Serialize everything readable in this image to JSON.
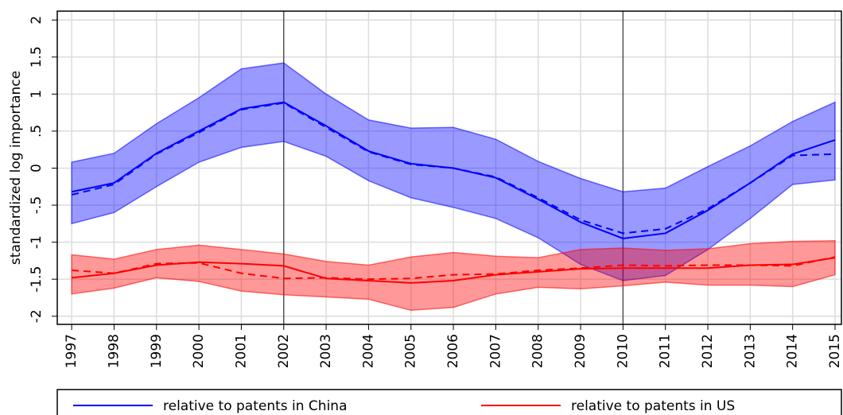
{
  "chart_data": {
    "type": "line",
    "y_label": "standardized log importance",
    "x": [
      1997,
      1998,
      1999,
      2000,
      2001,
      2002,
      2003,
      2004,
      2005,
      2006,
      2007,
      2008,
      2009,
      2010,
      2011,
      2012,
      2013,
      2014,
      2015
    ],
    "xlim": [
      1996.66,
      2015.15
    ],
    "xticks": [
      1997,
      1998,
      1999,
      2000,
      2001,
      2002,
      2003,
      2004,
      2005,
      2006,
      2007,
      2008,
      2009,
      2010,
      2011,
      2012,
      2013,
      2014,
      2015
    ],
    "ylim": [
      -2.11,
      2.12
    ],
    "yticks": [
      2,
      1.5,
      1,
      {
        "value": 0.5,
        "label": ".5"
      },
      0,
      {
        "value": -0.5,
        "label": "-.5"
      },
      -1,
      -1.5,
      -2
    ],
    "xlines": [
      2002,
      2010
    ],
    "grid": true,
    "series": [
      {
        "name": "relative to patents in China",
        "color": "#0000ff",
        "values": [
          -0.32,
          -0.2,
          0.2,
          0.5,
          0.8,
          0.89,
          0.57,
          0.23,
          0.06,
          0.0,
          -0.13,
          -0.42,
          -0.73,
          -0.95,
          -0.88,
          -0.57,
          -0.2,
          0.19,
          0.38
        ],
        "dashed_values": [
          -0.36,
          -0.22,
          0.19,
          0.48,
          0.79,
          0.88,
          0.55,
          0.22,
          0.05,
          0.0,
          -0.12,
          -0.4,
          -0.7,
          -0.88,
          -0.82,
          -0.55,
          -0.2,
          0.17,
          0.19
        ],
        "upper": [
          0.08,
          0.2,
          0.6,
          0.95,
          1.34,
          1.42,
          1.0,
          0.65,
          0.54,
          0.55,
          0.39,
          0.09,
          -0.14,
          -0.32,
          -0.27,
          0.02,
          0.3,
          0.63,
          0.89
        ],
        "lower": [
          -0.75,
          -0.6,
          -0.25,
          0.08,
          0.28,
          0.36,
          0.16,
          -0.17,
          -0.4,
          -0.53,
          -0.68,
          -0.94,
          -1.3,
          -1.52,
          -1.45,
          -1.1,
          -0.68,
          -0.22,
          -0.16
        ]
      },
      {
        "name": "relative to patents in US",
        "color": "#ff0000",
        "values": [
          -1.48,
          -1.42,
          -1.31,
          -1.27,
          -1.29,
          -1.32,
          -1.49,
          -1.52,
          -1.55,
          -1.52,
          -1.44,
          -1.4,
          -1.36,
          -1.35,
          -1.35,
          -1.35,
          -1.31,
          -1.3,
          -1.21
        ],
        "dashed_values": [
          -1.38,
          -1.42,
          -1.29,
          -1.28,
          -1.42,
          -1.49,
          -1.48,
          -1.5,
          -1.49,
          -1.44,
          -1.43,
          -1.38,
          -1.35,
          -1.31,
          -1.32,
          -1.31,
          -1.31,
          -1.32,
          -1.2
        ],
        "upper": [
          -1.17,
          -1.23,
          -1.1,
          -1.04,
          -1.1,
          -1.16,
          -1.26,
          -1.31,
          -1.2,
          -1.14,
          -1.19,
          -1.21,
          -1.1,
          -1.08,
          -1.11,
          -1.09,
          -1.02,
          -0.99,
          -0.98
        ],
        "lower": [
          -1.7,
          -1.62,
          -1.48,
          -1.53,
          -1.66,
          -1.71,
          -1.74,
          -1.77,
          -1.92,
          -1.88,
          -1.7,
          -1.61,
          -1.63,
          -1.59,
          -1.54,
          -1.58,
          -1.58,
          -1.6,
          -1.44
        ]
      }
    ]
  }
}
